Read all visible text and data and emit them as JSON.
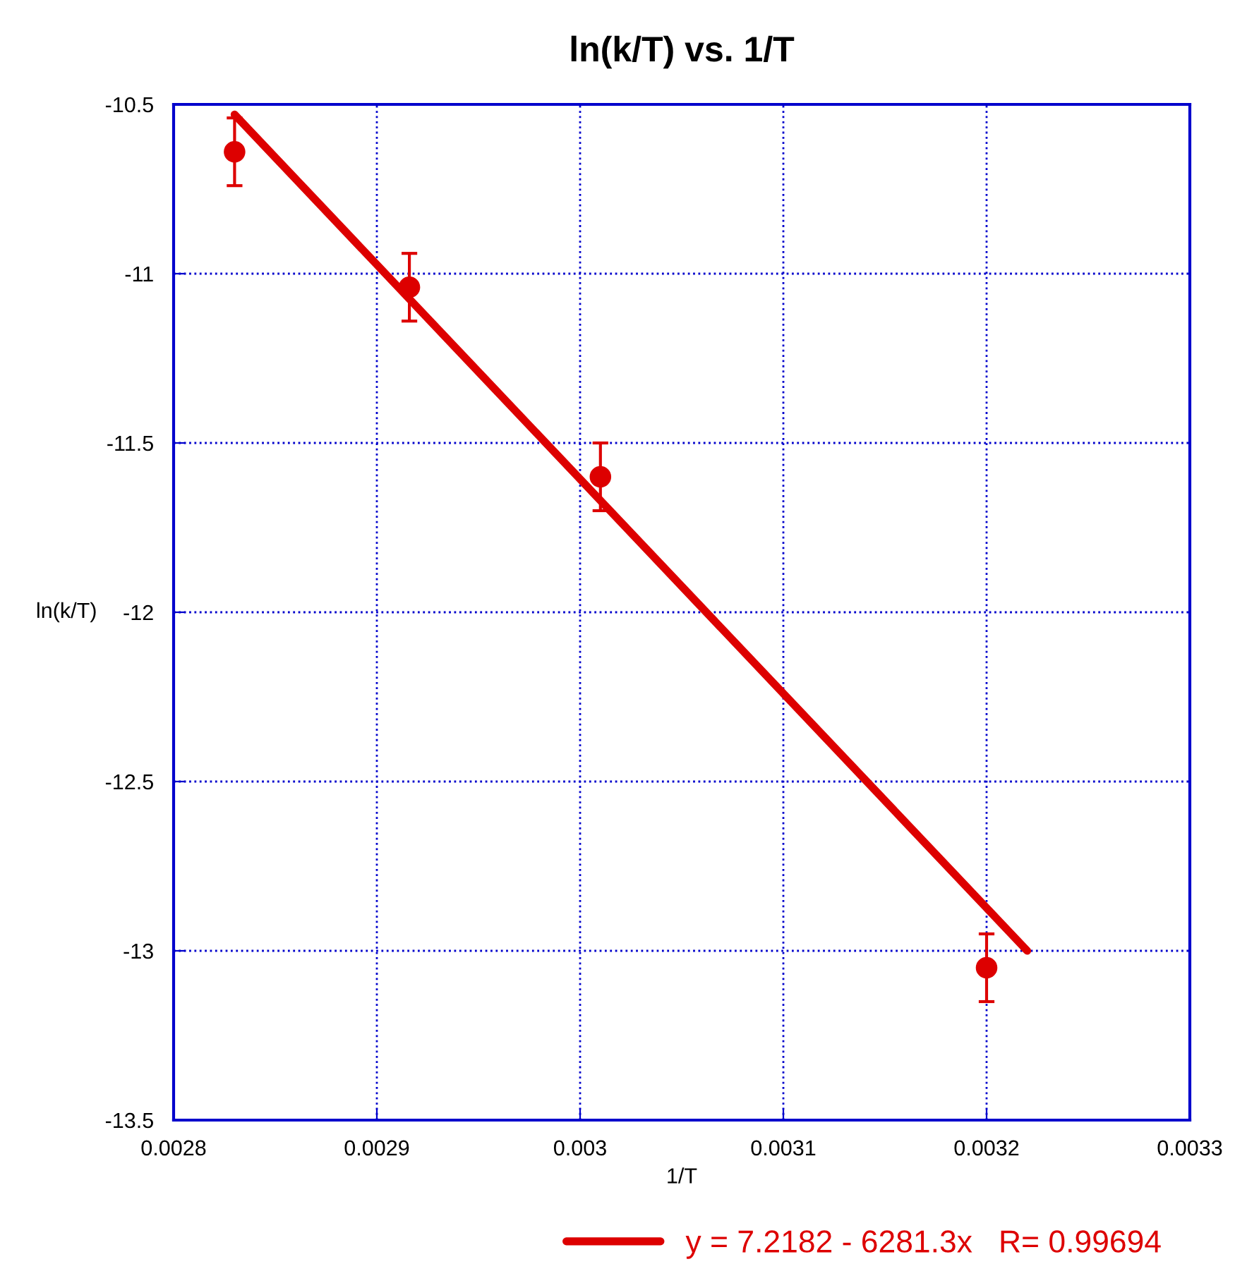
{
  "chart_data": {
    "type": "scatter",
    "title": "ln(k/T) vs. 1/T",
    "xlabel": "1/T",
    "ylabel": "ln(k/T)",
    "series": [
      {
        "color": "#dd0000",
        "x": [
          0.00283,
          0.002916,
          0.00301,
          0.0032
        ],
        "values": [
          -10.64,
          -11.04,
          -11.6,
          -13.05
        ],
        "errors": [
          0.1,
          0.1,
          0.1,
          0.1
        ],
        "marker": "circle"
      },
      {
        "type": "line",
        "name": "y = 7.2182 - 6281.3x   R= 0.99694",
        "color": "#dd0000",
        "x": [
          0.00283,
          0.00322
        ],
        "values": [
          -10.53,
          -13.0
        ],
        "marker": "none",
        "line_style": "solid"
      }
    ],
    "xlim": [
      0.0028,
      0.0033
    ],
    "xticks": [
      0.0028,
      0.0029,
      0.003,
      0.0031,
      0.0032,
      0.0033
    ],
    "ylim": [
      -13.5,
      -10.5
    ],
    "yticks": [
      -13.5,
      -13,
      -12.5,
      -12,
      -11.5,
      -11,
      -10.5
    ],
    "grid": true,
    "legend": "bottom"
  }
}
